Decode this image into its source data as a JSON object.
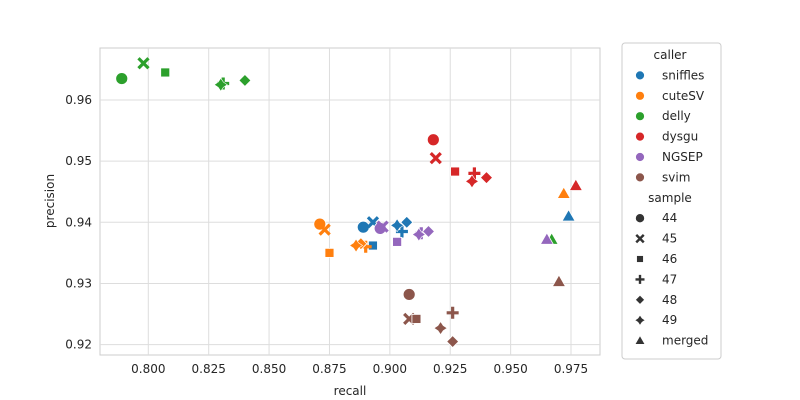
{
  "chart_data": {
    "type": "scatter",
    "xlabel": "recall",
    "ylabel": "precision",
    "xlim": [
      0.78,
      0.987
    ],
    "ylim": [
      0.9183,
      0.9685
    ],
    "x_ticks": [
      0.8,
      0.825,
      0.85,
      0.875,
      0.9,
      0.925,
      0.95,
      0.975
    ],
    "x_tick_labels": [
      "0.800",
      "0.825",
      "0.850",
      "0.875",
      "0.900",
      "0.925",
      "0.950",
      "0.975"
    ],
    "y_ticks": [
      0.92,
      0.93,
      0.94,
      0.95,
      0.96
    ],
    "y_tick_labels": [
      "0.92",
      "0.93",
      "0.94",
      "0.95",
      "0.96"
    ],
    "grid": true,
    "legend_placement": "outside-right",
    "hue_title": "caller",
    "style_title": "sample",
    "callers": [
      {
        "name": "sniffles",
        "color": "#1f77b4"
      },
      {
        "name": "cuteSV",
        "color": "#ff7f0e"
      },
      {
        "name": "delly",
        "color": "#2ca02c"
      },
      {
        "name": "dysgu",
        "color": "#d62728"
      },
      {
        "name": "NGSEP",
        "color": "#9467bd"
      },
      {
        "name": "svim",
        "color": "#8c564b"
      }
    ],
    "samples": [
      {
        "name": "44",
        "marker": "circle"
      },
      {
        "name": "45",
        "marker": "x"
      },
      {
        "name": "46",
        "marker": "square"
      },
      {
        "name": "47",
        "marker": "plus"
      },
      {
        "name": "48",
        "marker": "diamond"
      },
      {
        "name": "49",
        "marker": "thin-diamond"
      },
      {
        "name": "merged",
        "marker": "triangle"
      }
    ],
    "points": [
      {
        "caller": "sniffles",
        "sample": "44",
        "x": 0.889,
        "y": 0.9392
      },
      {
        "caller": "sniffles",
        "sample": "45",
        "x": 0.893,
        "y": 0.94
      },
      {
        "caller": "sniffles",
        "sample": "46",
        "x": 0.893,
        "y": 0.9362
      },
      {
        "caller": "sniffles",
        "sample": "47",
        "x": 0.905,
        "y": 0.9385
      },
      {
        "caller": "sniffles",
        "sample": "48",
        "x": 0.907,
        "y": 0.94
      },
      {
        "caller": "sniffles",
        "sample": "49",
        "x": 0.903,
        "y": 0.9395
      },
      {
        "caller": "sniffles",
        "sample": "merged",
        "x": 0.974,
        "y": 0.941
      },
      {
        "caller": "cuteSV",
        "sample": "44",
        "x": 0.871,
        "y": 0.9397
      },
      {
        "caller": "cuteSV",
        "sample": "45",
        "x": 0.873,
        "y": 0.9388
      },
      {
        "caller": "cuteSV",
        "sample": "46",
        "x": 0.875,
        "y": 0.935
      },
      {
        "caller": "cuteSV",
        "sample": "47",
        "x": 0.89,
        "y": 0.936
      },
      {
        "caller": "cuteSV",
        "sample": "48",
        "x": 0.888,
        "y": 0.9365
      },
      {
        "caller": "cuteSV",
        "sample": "49",
        "x": 0.886,
        "y": 0.9362
      },
      {
        "caller": "cuteSV",
        "sample": "merged",
        "x": 0.972,
        "y": 0.9447
      },
      {
        "caller": "delly",
        "sample": "44",
        "x": 0.789,
        "y": 0.9635
      },
      {
        "caller": "delly",
        "sample": "45",
        "x": 0.798,
        "y": 0.966
      },
      {
        "caller": "delly",
        "sample": "46",
        "x": 0.807,
        "y": 0.9645
      },
      {
        "caller": "delly",
        "sample": "47",
        "x": 0.831,
        "y": 0.9627
      },
      {
        "caller": "delly",
        "sample": "48",
        "x": 0.84,
        "y": 0.9632
      },
      {
        "caller": "delly",
        "sample": "49",
        "x": 0.83,
        "y": 0.9625
      },
      {
        "caller": "delly",
        "sample": "merged",
        "x": 0.967,
        "y": 0.9372
      },
      {
        "caller": "dysgu",
        "sample": "44",
        "x": 0.918,
        "y": 0.9535
      },
      {
        "caller": "dysgu",
        "sample": "45",
        "x": 0.919,
        "y": 0.9505
      },
      {
        "caller": "dysgu",
        "sample": "46",
        "x": 0.927,
        "y": 0.9483
      },
      {
        "caller": "dysgu",
        "sample": "47",
        "x": 0.935,
        "y": 0.948
      },
      {
        "caller": "dysgu",
        "sample": "48",
        "x": 0.94,
        "y": 0.9473
      },
      {
        "caller": "dysgu",
        "sample": "49",
        "x": 0.934,
        "y": 0.9467
      },
      {
        "caller": "dysgu",
        "sample": "merged",
        "x": 0.977,
        "y": 0.946
      },
      {
        "caller": "NGSEP",
        "sample": "44",
        "x": 0.896,
        "y": 0.939
      },
      {
        "caller": "NGSEP",
        "sample": "45",
        "x": 0.897,
        "y": 0.9393
      },
      {
        "caller": "NGSEP",
        "sample": "46",
        "x": 0.903,
        "y": 0.9368
      },
      {
        "caller": "NGSEP",
        "sample": "47",
        "x": 0.913,
        "y": 0.9382
      },
      {
        "caller": "NGSEP",
        "sample": "48",
        "x": 0.916,
        "y": 0.9385
      },
      {
        "caller": "NGSEP",
        "sample": "49",
        "x": 0.912,
        "y": 0.938
      },
      {
        "caller": "NGSEP",
        "sample": "merged",
        "x": 0.965,
        "y": 0.9372
      },
      {
        "caller": "svim",
        "sample": "44",
        "x": 0.908,
        "y": 0.9282
      },
      {
        "caller": "svim",
        "sample": "45",
        "x": 0.908,
        "y": 0.9242
      },
      {
        "caller": "svim",
        "sample": "46",
        "x": 0.911,
        "y": 0.9242
      },
      {
        "caller": "svim",
        "sample": "47",
        "x": 0.926,
        "y": 0.9252
      },
      {
        "caller": "svim",
        "sample": "48",
        "x": 0.926,
        "y": 0.9205
      },
      {
        "caller": "svim",
        "sample": "49",
        "x": 0.921,
        "y": 0.9227
      },
      {
        "caller": "svim",
        "sample": "merged",
        "x": 0.97,
        "y": 0.9303
      }
    ]
  }
}
